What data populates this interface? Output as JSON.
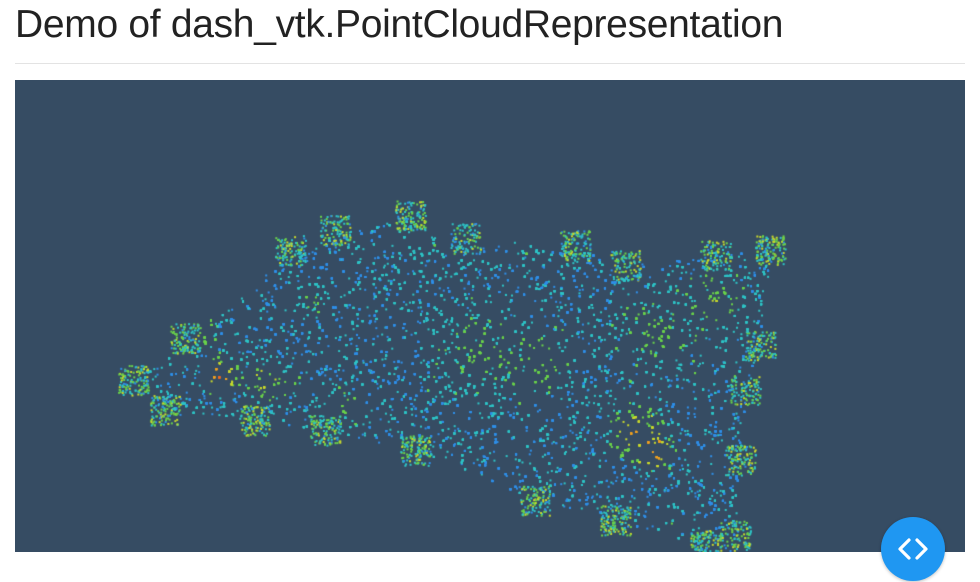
{
  "header": {
    "title": "Demo of dash_vtk.PointCloudRepresentation"
  },
  "viewer": {
    "background_color": "#364c63",
    "colormap": [
      "#1f5fd8",
      "#2f8fe8",
      "#2ec4c6",
      "#6ad24a",
      "#c8d82c",
      "#f0a020",
      "#ef6a20"
    ]
  },
  "debug_menu": {
    "icon": "code-brackets-icon",
    "color": "#1f97f2"
  }
}
